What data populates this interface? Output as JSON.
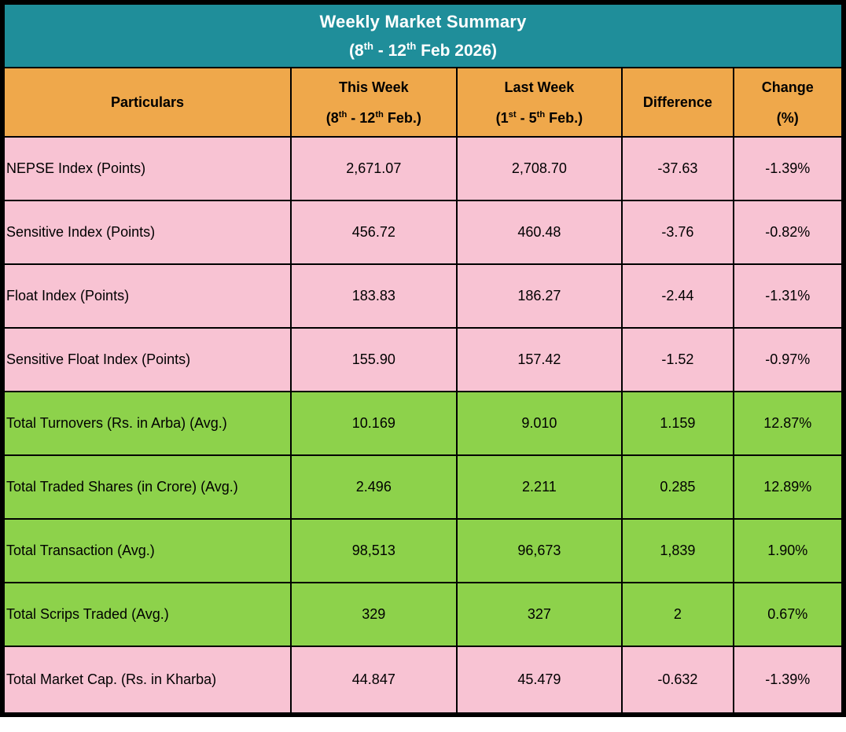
{
  "colors": {
    "teal": "#1f8e9a",
    "orange": "#efa84b",
    "pink": "#f8c3d3",
    "green": "#8dd24b",
    "border": "#000000",
    "title-text": "#ffffff"
  },
  "title": {
    "line1": "Weekly Market Summary",
    "line2": {
      "p1": "(8",
      "s1": "th",
      "p2": " - 12",
      "s2": "th",
      "p3": " Feb 2026)"
    }
  },
  "columns": {
    "particulars": "Particulars",
    "this_week": {
      "line1": "This Week",
      "sub": {
        "p1": "(8",
        "s1": "th",
        "p2": " - 12",
        "s2": "th",
        "p3": " Feb.)"
      }
    },
    "last_week": {
      "line1": "Last Week",
      "sub": {
        "p1": "(1",
        "s1": "st",
        "p2": " - 5",
        "s2": "th",
        "p3": " Feb.)"
      }
    },
    "difference": "Difference",
    "change": {
      "line1": "Change",
      "line2": "(%)"
    }
  },
  "chart_data": {
    "type": "table",
    "title": "Weekly Market Summary (8th - 12th Feb 2026)",
    "columns": [
      "Particulars",
      "This Week (8th - 12th Feb.)",
      "Last Week (1st - 5th Feb.)",
      "Difference",
      "Change (%)"
    ],
    "rows": [
      [
        "NEPSE Index (Points)",
        2671.07,
        2708.7,
        -37.63,
        "-1.39%"
      ],
      [
        "Sensitive Index (Points)",
        456.72,
        460.48,
        -3.76,
        "-0.82%"
      ],
      [
        "Float Index (Points)",
        183.83,
        186.27,
        -2.44,
        "-1.31%"
      ],
      [
        "Sensitive Float Index (Points)",
        155.9,
        157.42,
        -1.52,
        "-0.97%"
      ],
      [
        "Total Turnovers (Rs. in Arba) (Avg.)",
        10.169,
        9.01,
        1.159,
        "12.87%"
      ],
      [
        "Total Traded Shares (in Crore) (Avg.)",
        2.496,
        2.211,
        0.285,
        "12.89%"
      ],
      [
        "Total Transaction (Avg.)",
        98513,
        96673,
        1839,
        "1.90%"
      ],
      [
        "Total Scrips Traded (Avg.)",
        329,
        327,
        2,
        "0.67%"
      ],
      [
        "Total Market Cap. (Rs. in Kharba)",
        44.847,
        45.479,
        -0.632,
        "-1.39%"
      ]
    ]
  },
  "rows": [
    {
      "particulars": "NEPSE Index (Points)",
      "this_week": "2,671.07",
      "last_week": "2,708.70",
      "difference": "-37.63",
      "change": "-1.39%",
      "color": "pink"
    },
    {
      "particulars": "Sensitive Index (Points)",
      "this_week": "456.72",
      "last_week": "460.48",
      "difference": "-3.76",
      "change": "-0.82%",
      "color": "pink"
    },
    {
      "particulars": "Float Index (Points)",
      "this_week": "183.83",
      "last_week": "186.27",
      "difference": "-2.44",
      "change": "-1.31%",
      "color": "pink"
    },
    {
      "particulars": "Sensitive Float Index (Points)",
      "this_week": "155.90",
      "last_week": "157.42",
      "difference": "-1.52",
      "change": "-0.97%",
      "color": "pink"
    },
    {
      "particulars": "Total Turnovers (Rs. in Arba) (Avg.)",
      "this_week": "10.169",
      "last_week": "9.010",
      "difference": "1.159",
      "change": "12.87%",
      "color": "green"
    },
    {
      "particulars": "Total Traded Shares (in Crore) (Avg.)",
      "this_week": "2.496",
      "last_week": "2.211",
      "difference": "0.285",
      "change": "12.89%",
      "color": "green"
    },
    {
      "particulars": "Total Transaction (Avg.)",
      "this_week": "98,513",
      "last_week": "96,673",
      "difference": "1,839",
      "change": "1.90%",
      "color": "green"
    },
    {
      "particulars": "Total Scrips Traded (Avg.)",
      "this_week": "329",
      "last_week": "327",
      "difference": "2",
      "change": "0.67%",
      "color": "green"
    },
    {
      "particulars": "Total Market Cap. (Rs. in Kharba)",
      "this_week": "44.847",
      "last_week": "45.479",
      "difference": "-0.632",
      "change": "-1.39%",
      "color": "pink"
    }
  ]
}
